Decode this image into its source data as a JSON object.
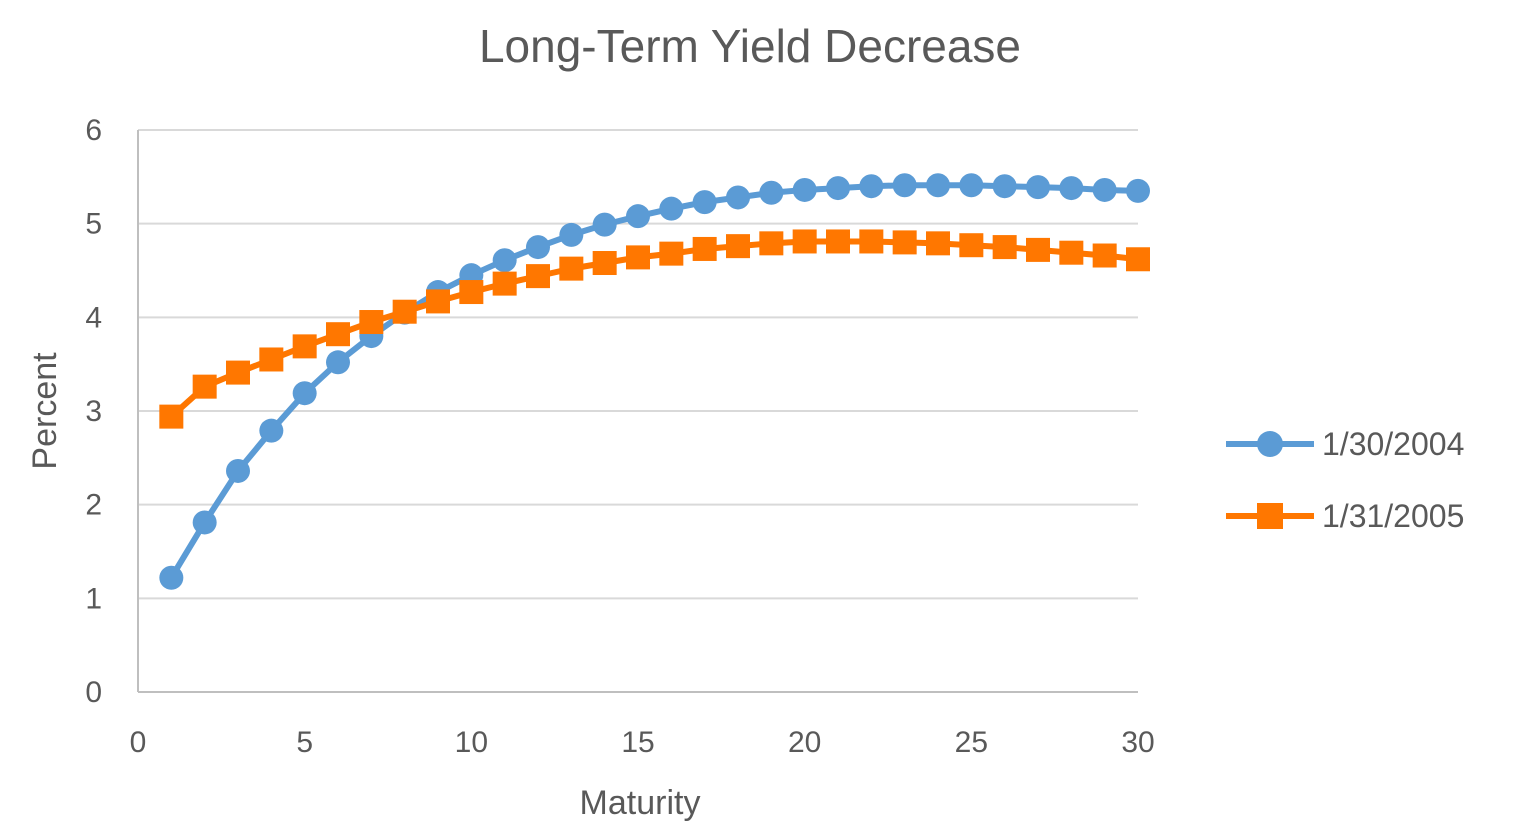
{
  "chart_data": {
    "type": "line",
    "title": "Long-Term Yield Decrease",
    "xlabel": "Maturity",
    "ylabel": "Percent",
    "xlim": [
      0,
      30
    ],
    "ylim": [
      0,
      6
    ],
    "xticks": [
      0,
      5,
      10,
      15,
      20,
      25,
      30
    ],
    "yticks": [
      0,
      1,
      2,
      3,
      4,
      5,
      6
    ],
    "grid": "horizontal",
    "legend_position": "right",
    "x": [
      1,
      2,
      3,
      4,
      5,
      6,
      7,
      8,
      9,
      10,
      11,
      12,
      13,
      14,
      15,
      16,
      17,
      18,
      19,
      20,
      21,
      22,
      23,
      24,
      25,
      26,
      27,
      28,
      29,
      30
    ],
    "series": [
      {
        "name": "1/30/2004",
        "color": "#5B9BD5",
        "marker": "circle",
        "values": [
          1.22,
          1.81,
          2.36,
          2.79,
          3.19,
          3.52,
          3.8,
          4.05,
          4.27,
          4.45,
          4.61,
          4.75,
          4.88,
          4.99,
          5.08,
          5.16,
          5.23,
          5.28,
          5.33,
          5.36,
          5.38,
          5.4,
          5.41,
          5.41,
          5.41,
          5.4,
          5.39,
          5.38,
          5.36,
          5.35
        ]
      },
      {
        "name": "1/31/2005",
        "color": "#FF7700",
        "marker": "square",
        "values": [
          2.94,
          3.26,
          3.41,
          3.55,
          3.69,
          3.82,
          3.95,
          4.06,
          4.17,
          4.27,
          4.36,
          4.44,
          4.52,
          4.58,
          4.64,
          4.68,
          4.73,
          4.76,
          4.79,
          4.81,
          4.81,
          4.81,
          4.8,
          4.79,
          4.77,
          4.75,
          4.72,
          4.69,
          4.66,
          4.62
        ]
      }
    ]
  }
}
